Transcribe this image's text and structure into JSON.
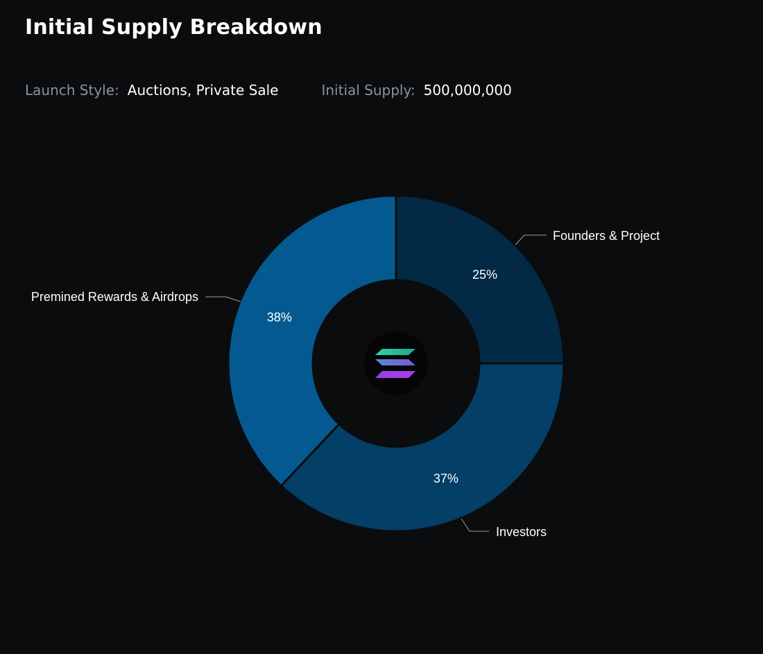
{
  "header": {
    "title": "Initial Supply Breakdown",
    "launch_style_label": "Launch Style:",
    "launch_style_value": "Auctions, Private Sale",
    "initial_supply_label": "Initial Supply:",
    "initial_supply_value": "500,000,000"
  },
  "center_icon": "solana-logo-icon",
  "colors": {
    "background": "#0b0c0e",
    "founders": "#022a45",
    "investors": "#033f66",
    "premined": "#045a90",
    "leader_line": "#9aa0a6",
    "logo_top": "#22c9a5",
    "logo_mid": "#6a6fd8",
    "logo_bottom": "#b03be8"
  },
  "chart_data": {
    "type": "pie",
    "donut": true,
    "title": "",
    "slices": [
      {
        "label": "Founders & Project",
        "value": 25,
        "display": "25%",
        "color": "#022a45"
      },
      {
        "label": "Investors",
        "value": 37,
        "display": "37%",
        "color": "#033f66"
      },
      {
        "label": "Premined Rewards & Airdrops",
        "value": 38,
        "display": "38%",
        "color": "#045a90"
      }
    ]
  }
}
